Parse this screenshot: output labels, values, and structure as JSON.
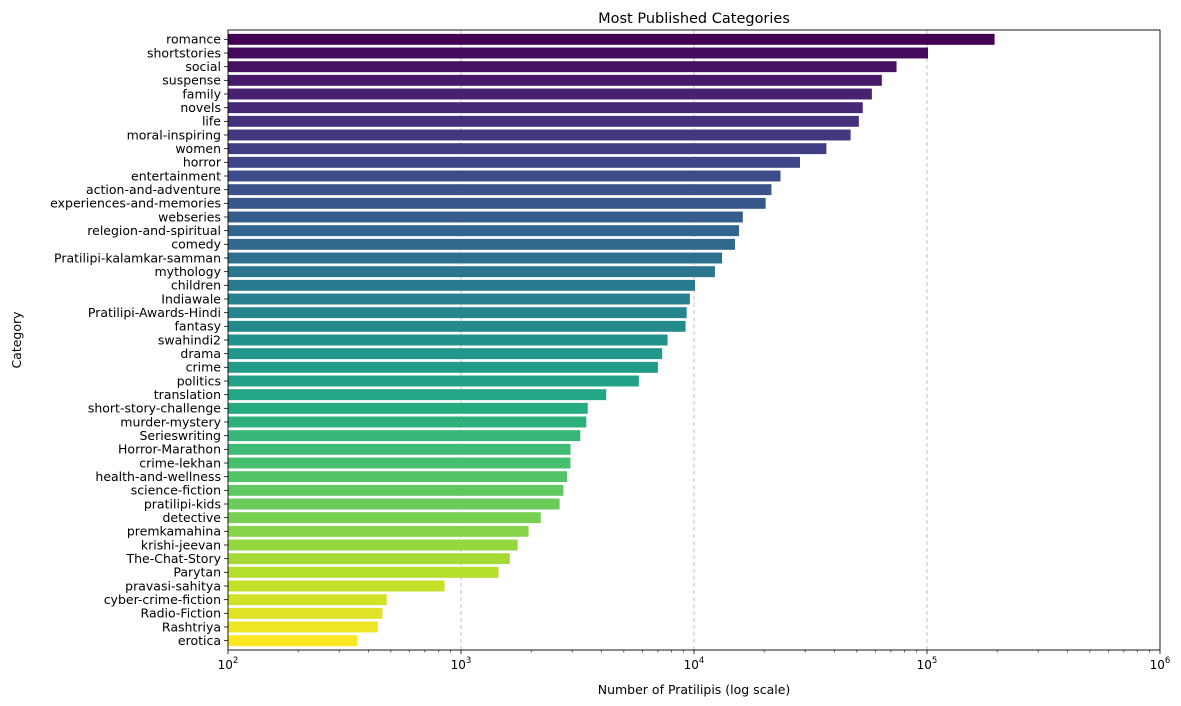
{
  "chart_data": {
    "type": "bar",
    "orientation": "horizontal",
    "title": "Most Published Categories",
    "xlabel": "Number of Pratilipis (log scale)",
    "ylabel": "Category",
    "xscale": "log",
    "xlim": [
      100,
      1000000
    ],
    "xticks": [
      {
        "base": "10",
        "exp": "2",
        "value": 100
      },
      {
        "base": "10",
        "exp": "3",
        "value": 1000
      },
      {
        "base": "10",
        "exp": "4",
        "value": 10000
      },
      {
        "base": "10",
        "exp": "5",
        "value": 100000
      },
      {
        "base": "10",
        "exp": "6",
        "value": 1000000
      }
    ],
    "grid": "x-axis dashed",
    "palette": "viridis",
    "colors": [
      "#440154",
      "#fde725"
    ],
    "categories": [
      "romance",
      "shortstories",
      "social",
      "suspense",
      "family",
      "novels",
      "life",
      "moral-inspiring",
      "women",
      "horror",
      "entertainment",
      "action-and-adventure",
      "experiences-and-memories",
      "webseries",
      "relegion-and-spiritual",
      "comedy",
      "Pratilipi-kalamkar-samman",
      "mythology",
      "children",
      "Indiawale",
      "Pratilipi-Awards-Hindi",
      "fantasy",
      "swahindi2",
      "drama",
      "crime",
      "politics",
      "translation",
      "short-story-challenge",
      "murder-mystery",
      "Serieswriting",
      "Horror-Marathon",
      "crime-lekhan",
      "health-and-wellness",
      "science-fiction",
      "pratilipi-kids",
      "detective",
      "premkamahina",
      "krishi-jeevan",
      "The-Chat-Story",
      "Parytan",
      "pravasi-sahitya",
      "cyber-crime-fiction",
      "Radio-Fiction",
      "Rashtriya",
      "erotica"
    ],
    "values": [
      195000,
      101000,
      74000,
      64000,
      58000,
      53000,
      51000,
      47000,
      37000,
      28500,
      23500,
      21500,
      20300,
      16200,
      15600,
      15000,
      13200,
      12300,
      10100,
      9600,
      9300,
      9200,
      7700,
      7300,
      7000,
      5800,
      4200,
      3500,
      3450,
      3250,
      2950,
      2950,
      2850,
      2750,
      2650,
      2200,
      1950,
      1750,
      1620,
      1450,
      850,
      480,
      460,
      440,
      360
    ]
  }
}
